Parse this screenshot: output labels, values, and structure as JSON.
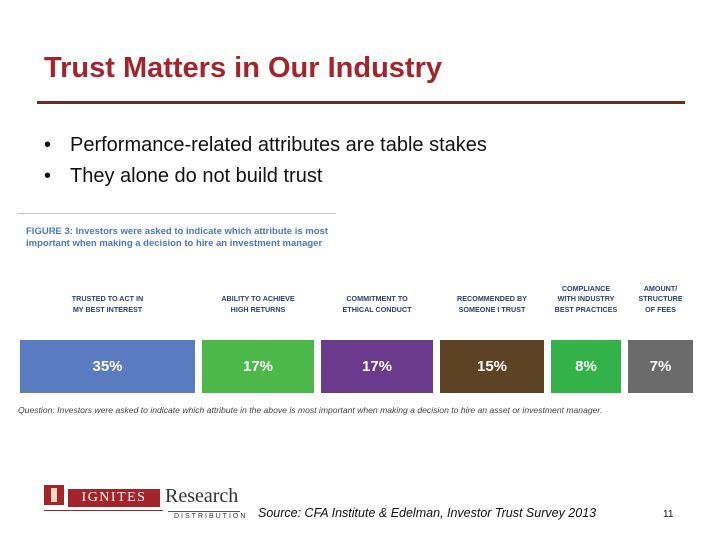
{
  "slide": {
    "title": "Trust Matters in Our Industry",
    "bullets": [
      "Performance-related attributes are table stakes",
      "They alone do not build trust"
    ],
    "bullet_marker": "•"
  },
  "figure": {
    "caption_label": "FIGURE 3:",
    "caption_text": "Investors were asked to indicate which attribute is most important when making a decision to hire an investment manager",
    "question": "Question: Investors were asked to indicate which attribute in the above is most important when making a decision to hire an asset or investment manager.",
    "chart_data": {
      "type": "bar",
      "orientation": "horizontal-stacked",
      "categories": [
        "TRUSTED TO ACT IN MY BEST INTEREST",
        "ABILITY TO ACHIEVE HIGH RETURNS",
        "COMMITMENT TO ETHICAL CONDUCT",
        "RECOMMENDED BY SOMEONE I TRUST",
        "COMPLIANCE WITH INDUSTRY BEST PRACTICES",
        "AMOUNT/ STRUCTURE OF FEES"
      ],
      "label_lines": [
        [
          "TRUSTED TO ACT IN",
          "MY BEST INTEREST"
        ],
        [
          "ABILITY TO ACHIEVE",
          "HIGH RETURNS"
        ],
        [
          "COMMITMENT TO",
          "ETHICAL CONDUCT"
        ],
        [
          "RECOMMENDED BY",
          "SOMEONE I TRUST"
        ],
        [
          "COMPLIANCE",
          "WITH INDUSTRY",
          "BEST PRACTICES"
        ],
        [
          "AMOUNT/",
          "STRUCTURE",
          "OF FEES"
        ]
      ],
      "values": [
        35,
        17,
        17,
        15,
        8,
        7
      ],
      "value_labels": [
        "35%",
        "17%",
        "17%",
        "15%",
        "8%",
        "7%"
      ],
      "colors": [
        "#5a7bc0",
        "#4cb84a",
        "#6a3a8c",
        "#5b4323",
        "#33b24a",
        "#6b6b6b"
      ],
      "unit": "%"
    }
  },
  "footer": {
    "logo_ignites": "IGNITES",
    "logo_research": "Research",
    "logo_distribution": "DISTRIBUTION",
    "source": "Source: CFA Institute & Edelman, Investor Trust Survey 2013",
    "page_number": "11"
  }
}
